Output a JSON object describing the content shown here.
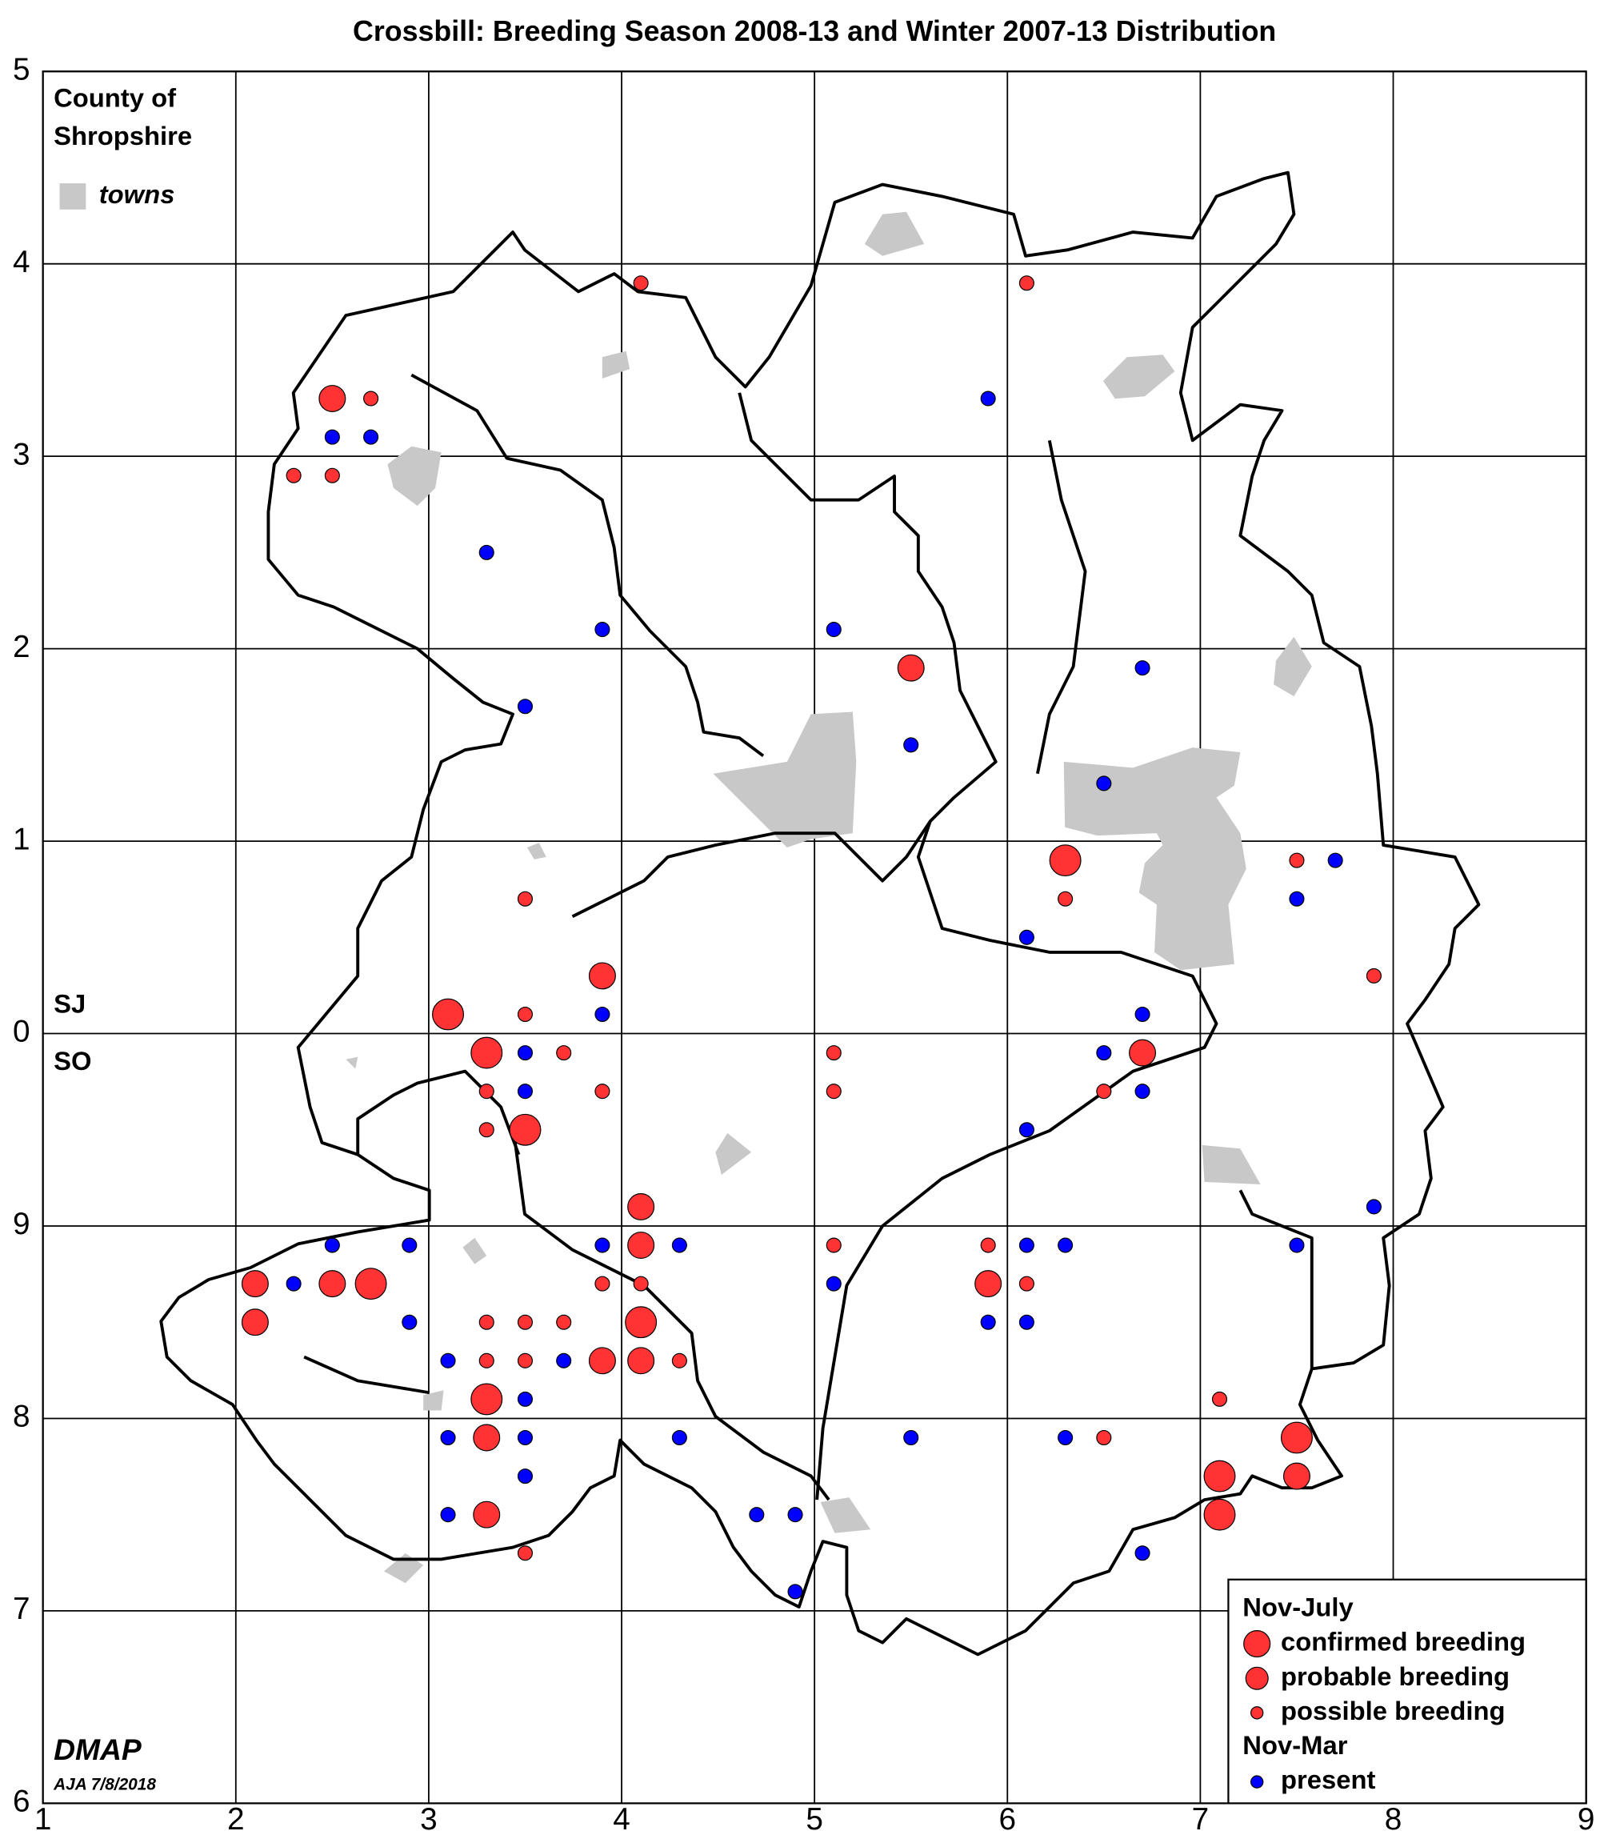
{
  "chart_data": {
    "type": "scatter",
    "title": "Crossbill: Breeding Season 2008-13 and Winter 2007-13 Distribution",
    "map_label": [
      "County of",
      "Shropshire"
    ],
    "towns_label": "towns",
    "grid_labels": {
      "north": "SJ",
      "south": "SO"
    },
    "credit": "DMAP",
    "credit_note": "AJA 7/8/2018",
    "xlim": [
      1,
      9
    ],
    "ylim": [
      -4,
      5
    ],
    "xticks": [
      1,
      2,
      3,
      4,
      5,
      6,
      7,
      8,
      9
    ],
    "yticks": [
      5,
      4,
      3,
      2,
      1,
      0,
      {
        "value": -1,
        "label": "9"
      },
      {
        "value": -2,
        "label": "8"
      },
      {
        "value": -3,
        "label": "7"
      },
      {
        "value": -4,
        "label": "6"
      }
    ],
    "grid": true,
    "legend": "lower right",
    "groups": [
      {
        "title": "Nov-July",
        "series": [
          {
            "name": "confirmed breeding",
            "color": "#ff3333",
            "marker_size": 13,
            "x": [
              6.3,
              3.1,
              3.3,
              3.5,
              2.7,
              4.1,
              3.3,
              7.5,
              7.1,
              7.1
            ],
            "y": [
              0.9,
              0.1,
              -0.1,
              -0.5,
              -1.3,
              -1.5,
              -1.9,
              -2.1,
              -2.3,
              -2.5
            ]
          },
          {
            "name": "probable breeding",
            "color": "#ff3333",
            "marker_size": 11,
            "x": [
              2.5,
              5.5,
              3.9,
              6.7,
              4.1,
              4.1,
              2.1,
              2.5,
              5.9,
              2.1,
              3.9,
              4.1,
              3.3,
              7.5,
              3.3
            ],
            "y": [
              3.3,
              1.9,
              0.3,
              -0.1,
              -0.9,
              -1.1,
              -1.3,
              -1.3,
              -1.3,
              -1.5,
              -1.7,
              -1.7,
              -2.1,
              -2.3,
              -2.5
            ]
          },
          {
            "name": "possible breeding",
            "color": "#ff3333",
            "marker_size": 6,
            "x": [
              4.1,
              6.1,
              2.7,
              2.3,
              2.5,
              6.3,
              7.5,
              3.5,
              7.9,
              3.5,
              3.7,
              5.1,
              3.3,
              3.9,
              5.1,
              6.5,
              3.3,
              5.1,
              5.9,
              3.9,
              4.1,
              6.1,
              3.3,
              3.5,
              3.7,
              3.3,
              3.5,
              4.3,
              7.1,
              6.5,
              3.5
            ],
            "y": [
              3.9,
              3.9,
              3.3,
              2.9,
              2.9,
              0.7,
              0.9,
              0.7,
              0.3,
              0.1,
              -0.1,
              -0.1,
              -0.3,
              -0.3,
              -0.3,
              -0.3,
              -0.5,
              -1.1,
              -1.1,
              -1.3,
              -1.3,
              -1.3,
              -1.5,
              -1.5,
              -1.5,
              -1.7,
              -1.7,
              -1.7,
              -1.9,
              -2.1,
              -2.7
            ]
          }
        ]
      },
      {
        "title": "Nov-Mar",
        "series": [
          {
            "name": "present",
            "color": "#0000ff",
            "marker_size": 6,
            "x": [
              2.5,
              2.7,
              3.3,
              3.9,
              5.1,
              5.9,
              6.7,
              3.5,
              5.5,
              6.5,
              7.7,
              7.5,
              6.1,
              3.9,
              6.7,
              3.5,
              6.5,
              3.5,
              6.7,
              6.1,
              7.9,
              2.5,
              2.9,
              3.9,
              4.3,
              6.1,
              6.3,
              7.5,
              2.3,
              5.1,
              2.9,
              5.9,
              6.1,
              3.1,
              3.7,
              3.5,
              3.1,
              3.5,
              4.3,
              5.5,
              6.3,
              3.5,
              3.1,
              4.7,
              4.9,
              6.7,
              4.9
            ],
            "y": [
              3.1,
              3.1,
              2.5,
              2.1,
              2.1,
              3.3,
              1.9,
              1.7,
              1.5,
              1.3,
              0.9,
              0.7,
              0.5,
              0.1,
              0.1,
              -0.1,
              -0.1,
              -0.3,
              -0.3,
              -0.5,
              -0.9,
              -1.1,
              -1.1,
              -1.1,
              -1.1,
              -1.1,
              -1.1,
              -1.1,
              -1.3,
              -1.3,
              -1.5,
              -1.5,
              -1.5,
              -1.7,
              -1.7,
              -1.9,
              -2.1,
              -2.1,
              -2.1,
              -2.1,
              -2.1,
              -2.3,
              -2.5,
              -2.5,
              -2.5,
              -2.7,
              -2.9
            ]
          }
        ]
      }
    ]
  }
}
